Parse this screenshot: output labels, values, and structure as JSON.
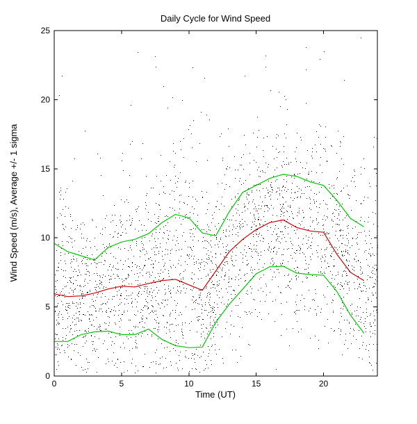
{
  "figure": {
    "background": "#ffffff",
    "axis_color": "#000000"
  },
  "chart_data": {
    "type": "scatter",
    "title": "Daily Cycle for Wind Speed",
    "xlabel": "Time (UT)",
    "ylabel": "Wind Speed (m/s), Average +/- 1 sigma",
    "xlim": [
      0,
      24
    ],
    "ylim": [
      0,
      25
    ],
    "x_ticks": [
      0,
      5,
      10,
      15,
      20
    ],
    "y_ticks": [
      0,
      5,
      10,
      15,
      20,
      25
    ],
    "grid": false,
    "legend": "none",
    "hours": [
      0,
      1,
      2,
      3,
      4,
      5,
      6,
      7,
      8,
      9,
      10,
      11,
      12,
      13,
      14,
      15,
      16,
      17,
      18,
      19,
      20,
      21,
      22,
      23
    ],
    "series": [
      {
        "name": "average",
        "color": "#cc0000",
        "values": [
          5.95,
          5.75,
          5.8,
          6.0,
          6.3,
          6.5,
          6.45,
          6.7,
          6.9,
          7.0,
          6.6,
          6.2,
          7.6,
          9.0,
          9.9,
          10.6,
          11.1,
          11.3,
          10.75,
          10.5,
          10.4,
          8.8,
          7.5,
          6.9
        ]
      },
      {
        "name": "average_plus_sigma",
        "color": "#00c800",
        "values": [
          9.6,
          9.0,
          8.7,
          8.4,
          9.3,
          9.7,
          9.9,
          10.3,
          11.1,
          11.7,
          11.45,
          10.35,
          10.15,
          11.9,
          13.3,
          13.8,
          14.3,
          14.6,
          14.45,
          14.05,
          13.8,
          12.7,
          11.4,
          10.8
        ]
      },
      {
        "name": "average_minus_sigma",
        "color": "#00c800",
        "values": [
          2.5,
          2.5,
          3.0,
          3.2,
          3.25,
          3.0,
          3.0,
          3.4,
          2.65,
          2.2,
          2.05,
          2.1,
          3.9,
          5.2,
          6.3,
          7.4,
          7.9,
          7.95,
          7.45,
          7.35,
          7.3,
          6.1,
          4.4,
          3.1
        ]
      }
    ],
    "scatter": {
      "name": "wind-speed-measurements",
      "marker": "1px point",
      "color": "#000000",
      "count": 2800,
      "seed": 42,
      "value_range_observed": [
        0.3,
        24.8
      ],
      "description": "individual wind speed samples distributed around the hourly average with roughly +/- 1 sigma spread"
    }
  }
}
